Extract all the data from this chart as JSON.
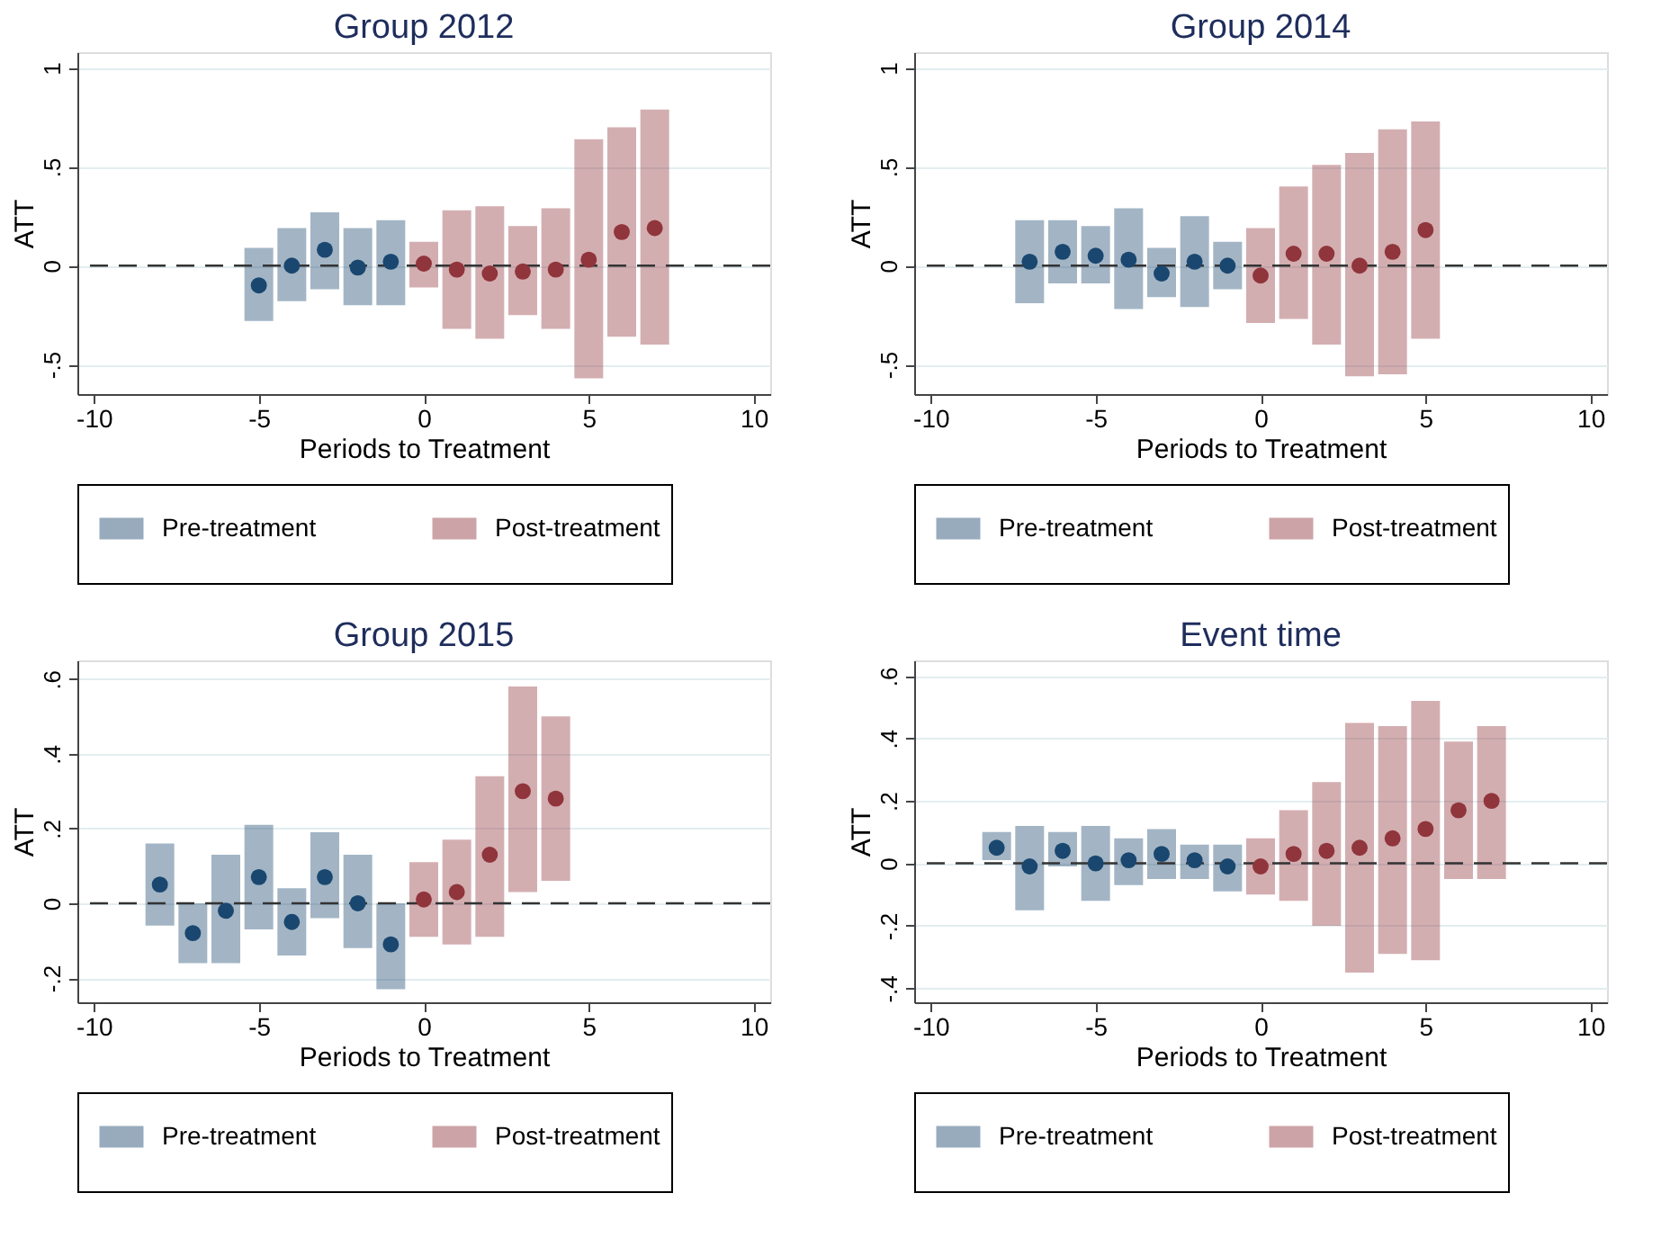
{
  "chart_data": [
    {
      "type": "scatter",
      "title": "Group 2012",
      "xlabel": "Periods to Treatment",
      "ylabel": "ATT",
      "xlim": [
        -10.5,
        10.5
      ],
      "xticks": [
        -10,
        -5,
        0,
        5,
        10
      ],
      "ylim": [
        -0.65,
        1.08
      ],
      "yticks": [
        {
          "value": -0.5,
          "label": "-.5"
        },
        0,
        {
          "value": 0.5,
          "label": ".5"
        },
        1
      ],
      "grid": "y",
      "legend": "bottom",
      "marker": "circle",
      "ref_lines": [
        {
          "axis": "y",
          "value": 0,
          "line_style": "dashed"
        }
      ],
      "series": [
        {
          "name": "Pre-treatment",
          "color": "#1a476f",
          "x": [
            -5,
            -4,
            -3,
            -2,
            -1
          ],
          "values": [
            -0.1,
            0.0,
            0.08,
            -0.01,
            0.02
          ],
          "errors": [
            [
              -0.28,
              0.09
            ],
            [
              -0.18,
              0.19
            ],
            [
              -0.12,
              0.27
            ],
            [
              -0.2,
              0.19
            ],
            [
              -0.2,
              0.23
            ]
          ]
        },
        {
          "name": "Post-treatment",
          "color": "#90353b",
          "x": [
            0,
            1,
            2,
            3,
            4,
            5,
            6,
            7
          ],
          "values": [
            0.01,
            -0.02,
            -0.04,
            -0.03,
            -0.02,
            0.03,
            0.17,
            0.19
          ],
          "errors": [
            [
              -0.11,
              0.12
            ],
            [
              -0.32,
              0.28
            ],
            [
              -0.37,
              0.3
            ],
            [
              -0.25,
              0.2
            ],
            [
              -0.32,
              0.29
            ],
            [
              -0.57,
              0.64
            ],
            [
              -0.36,
              0.7
            ],
            [
              -0.4,
              0.79
            ]
          ]
        }
      ]
    },
    {
      "type": "scatter",
      "title": "Group 2014",
      "xlabel": "Periods to Treatment",
      "ylabel": "ATT",
      "xlim": [
        -10.5,
        10.5
      ],
      "xticks": [
        -10,
        -5,
        0,
        5,
        10
      ],
      "ylim": [
        -0.65,
        1.08
      ],
      "yticks": [
        {
          "value": -0.5,
          "label": "-.5"
        },
        0,
        {
          "value": 0.5,
          "label": ".5"
        },
        1
      ],
      "grid": "y",
      "legend": "bottom",
      "marker": "circle",
      "ref_lines": [
        {
          "axis": "y",
          "value": 0,
          "line_style": "dashed"
        }
      ],
      "series": [
        {
          "name": "Pre-treatment",
          "color": "#1a476f",
          "x": [
            -7,
            -6,
            -5,
            -4,
            -3,
            -2,
            -1
          ],
          "values": [
            0.02,
            0.07,
            0.05,
            0.03,
            -0.04,
            0.02,
            0.0
          ],
          "errors": [
            [
              -0.19,
              0.23
            ],
            [
              -0.09,
              0.23
            ],
            [
              -0.09,
              0.2
            ],
            [
              -0.22,
              0.29
            ],
            [
              -0.16,
              0.09
            ],
            [
              -0.21,
              0.25
            ],
            [
              -0.12,
              0.12
            ]
          ]
        },
        {
          "name": "Post-treatment",
          "color": "#90353b",
          "x": [
            0,
            1,
            2,
            3,
            4,
            5
          ],
          "values": [
            -0.05,
            0.06,
            0.06,
            0.0,
            0.07,
            0.18
          ],
          "errors": [
            [
              -0.29,
              0.19
            ],
            [
              -0.27,
              0.4
            ],
            [
              -0.4,
              0.51
            ],
            [
              -0.56,
              0.57
            ],
            [
              -0.55,
              0.69
            ],
            [
              -0.37,
              0.73
            ]
          ]
        }
      ]
    },
    {
      "type": "scatter",
      "title": "Group 2015",
      "xlabel": "Periods to Treatment",
      "ylabel": "ATT",
      "xlim": [
        -10.5,
        10.5
      ],
      "xticks": [
        -10,
        -5,
        0,
        5,
        10
      ],
      "ylim": [
        -0.265,
        0.65
      ],
      "yticks": [
        {
          "value": -0.2,
          "label": "-.2"
        },
        0,
        {
          "value": 0.2,
          "label": ".2"
        },
        {
          "value": 0.4,
          "label": ".4"
        },
        {
          "value": 0.6,
          "label": ".6"
        }
      ],
      "grid": "y",
      "legend": "bottom",
      "marker": "circle",
      "ref_lines": [
        {
          "axis": "y",
          "value": 0,
          "line_style": "dashed"
        }
      ],
      "series": [
        {
          "name": "Pre-treatment",
          "color": "#1a476f",
          "x": [
            -8,
            -7,
            -6,
            -5,
            -4,
            -3,
            -2,
            -1
          ],
          "values": [
            0.05,
            -0.08,
            -0.02,
            0.07,
            -0.05,
            0.07,
            0.0,
            -0.11
          ],
          "errors": [
            [
              -0.06,
              0.16
            ],
            [
              -0.16,
              0.0
            ],
            [
              -0.16,
              0.13
            ],
            [
              -0.07,
              0.21
            ],
            [
              -0.14,
              0.04
            ],
            [
              -0.04,
              0.19
            ],
            [
              -0.12,
              0.13
            ],
            [
              -0.23,
              0.0
            ]
          ]
        },
        {
          "name": "Post-treatment",
          "color": "#90353b",
          "x": [
            0,
            1,
            2,
            3,
            4
          ],
          "values": [
            0.01,
            0.03,
            0.13,
            0.3,
            0.28
          ],
          "errors": [
            [
              -0.09,
              0.11
            ],
            [
              -0.11,
              0.17
            ],
            [
              -0.09,
              0.34
            ],
            [
              0.03,
              0.58
            ],
            [
              0.06,
              0.5
            ]
          ]
        }
      ]
    },
    {
      "type": "scatter",
      "title": "Event time",
      "xlabel": "Periods to Treatment",
      "ylabel": "ATT",
      "xlim": [
        -10.5,
        10.5
      ],
      "xticks": [
        -10,
        -5,
        0,
        5,
        10
      ],
      "ylim": [
        -0.445,
        0.65
      ],
      "yticks": [
        {
          "value": -0.4,
          "label": "-.4"
        },
        {
          "value": -0.2,
          "label": "-.2"
        },
        0,
        {
          "value": 0.2,
          "label": ".2"
        },
        {
          "value": 0.4,
          "label": ".4"
        },
        {
          "value": 0.6,
          "label": ".6"
        }
      ],
      "grid": "y",
      "legend": "bottom",
      "marker": "circle",
      "ref_lines": [
        {
          "axis": "y",
          "value": 0,
          "line_style": "dashed"
        }
      ],
      "series": [
        {
          "name": "Pre-treatment",
          "color": "#1a476f",
          "x": [
            -8,
            -7,
            -6,
            -5,
            -4,
            -3,
            -2,
            -1
          ],
          "values": [
            0.05,
            -0.01,
            0.04,
            0.0,
            0.01,
            0.03,
            0.01,
            -0.01
          ],
          "errors": [
            [
              0.01,
              0.1
            ],
            [
              -0.15,
              0.12
            ],
            [
              -0.01,
              0.1
            ],
            [
              -0.12,
              0.12
            ],
            [
              -0.07,
              0.08
            ],
            [
              -0.05,
              0.11
            ],
            [
              -0.05,
              0.06
            ],
            [
              -0.09,
              0.06
            ]
          ]
        },
        {
          "name": "Post-treatment",
          "color": "#90353b",
          "x": [
            0,
            1,
            2,
            3,
            4,
            5,
            6,
            7
          ],
          "values": [
            -0.01,
            0.03,
            0.04,
            0.05,
            0.08,
            0.11,
            0.17,
            0.2
          ],
          "errors": [
            [
              -0.1,
              0.08
            ],
            [
              -0.12,
              0.17
            ],
            [
              -0.2,
              0.26
            ],
            [
              -0.35,
              0.45
            ],
            [
              -0.29,
              0.44
            ],
            [
              -0.31,
              0.52
            ],
            [
              -0.05,
              0.39
            ],
            [
              -0.05,
              0.44
            ]
          ]
        }
      ]
    }
  ]
}
